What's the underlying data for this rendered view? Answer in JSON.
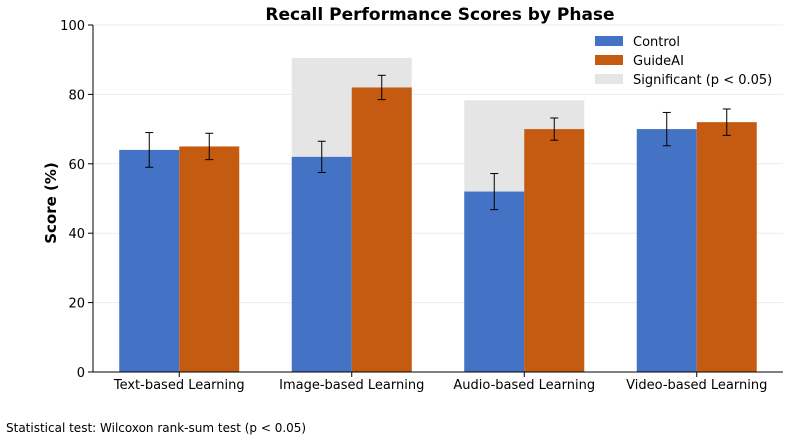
{
  "chart_data": {
    "type": "bar",
    "title": "Recall Performance Scores by Phase",
    "xlabel": "",
    "ylabel": "Score (%)",
    "ylim": [
      0,
      100
    ],
    "yticks": [
      0,
      20,
      40,
      60,
      80,
      100
    ],
    "categories": [
      "Text-based Learning",
      "Image-based Learning",
      "Audio-based Learning",
      "Video-based Learning"
    ],
    "series": [
      {
        "name": "Control",
        "color": "#4472c4",
        "values": [
          64,
          62,
          52,
          70
        ],
        "errors": [
          5,
          4.5,
          5.2,
          4.8
        ]
      },
      {
        "name": "GuideAI",
        "color": "#c55a11",
        "values": [
          65,
          82,
          70,
          72
        ],
        "errors": [
          3.8,
          3.5,
          3.2,
          3.8
        ]
      }
    ],
    "significance": {
      "label": "Significant (p < 0.05)",
      "color": "#e5e5e5",
      "flags": [
        false,
        true,
        true,
        false
      ],
      "levels": [
        null,
        90.5,
        78.3,
        null
      ]
    },
    "legend_position": "top-right",
    "grid": "horizontal"
  },
  "footnote": "Statistical test: Wilcoxon rank-sum test (p < 0.05)"
}
